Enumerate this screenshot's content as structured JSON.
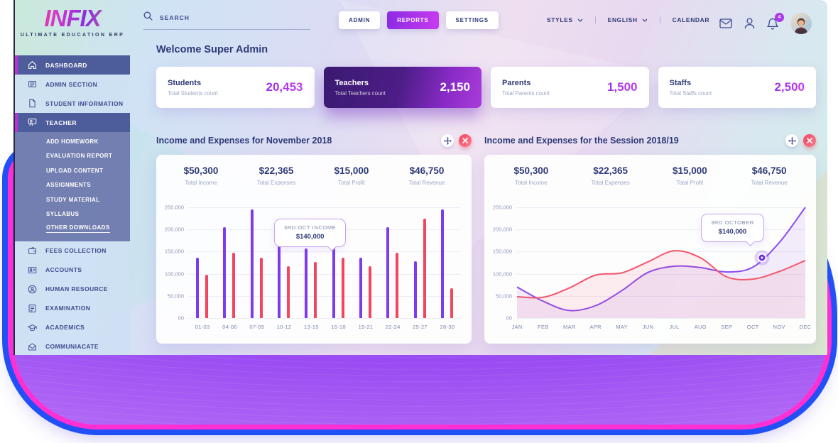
{
  "brand": {
    "name": "INFIX",
    "tagline": "ULTIMATE EDUCATION ERP"
  },
  "header": {
    "search_placeholder": "SEARCH",
    "nav_buttons": [
      {
        "label": "ADMIN",
        "active": false
      },
      {
        "label": "REPORTS",
        "active": true
      },
      {
        "label": "SETTINGS",
        "active": false
      }
    ],
    "links": [
      {
        "label": "STYLES",
        "chevron": true
      },
      {
        "label": "ENGLISH",
        "chevron": true
      },
      {
        "label": "CALENDAR",
        "chevron": false
      }
    ],
    "notification_count": "4"
  },
  "sidebar": {
    "items": [
      {
        "label": "DASHBOARD",
        "icon": "home-icon",
        "active": true
      },
      {
        "label": "ADMIN SECTION",
        "icon": "newspaper-icon"
      },
      {
        "label": "STUDENT INFORMATION",
        "icon": "document-icon"
      },
      {
        "label": "TEACHER",
        "icon": "teacher-icon",
        "active": true,
        "children": [
          "ADD HOMEWORK",
          "EVALUATION REPORT",
          "UPLOAD CONTENT",
          "ASSIGNMENTS",
          "STUDY MATERIAL",
          "SYLLABUS",
          "OTHER DOWNLOADS"
        ]
      },
      {
        "label": "FEES COLLECTION",
        "icon": "wallet-icon"
      },
      {
        "label": "ACCOUNTS",
        "icon": "id-card-icon"
      },
      {
        "label": "HUMAN RESOURCE",
        "icon": "user-circle-icon"
      },
      {
        "label": "EXAMINATION",
        "icon": "exam-icon"
      },
      {
        "label": "ACADEMICS",
        "icon": "graduation-cap-icon"
      },
      {
        "label": "COMMUNIACATE",
        "icon": "envelope-open-icon"
      }
    ]
  },
  "main": {
    "welcome": "Welcome Super Admin",
    "stat_cards": [
      {
        "title": "Students",
        "subtitle": "Total Students count",
        "value": "20,453",
        "highlight": false
      },
      {
        "title": "Teachers",
        "subtitle": "Total Teachers count",
        "value": "2,150",
        "highlight": true
      },
      {
        "title": "Parents",
        "subtitle": "Total Parents count",
        "value": "1,500",
        "highlight": false
      },
      {
        "title": "Staffs",
        "subtitle": "Total Staffs count",
        "value": "2,500",
        "highlight": false
      }
    ]
  },
  "chart_data": [
    {
      "type": "bar",
      "title": "Income and Expenses for November 2018",
      "stats": [
        {
          "value": "$50,300",
          "label": "Total Income"
        },
        {
          "value": "$22,365",
          "label": "Total Expenses"
        },
        {
          "value": "$15,000",
          "label": "Total Profit"
        },
        {
          "value": "$46,750",
          "label": "Total Revenue"
        }
      ],
      "categories": [
        "01-03",
        "04-06",
        "07-09",
        "10-12",
        "13-15",
        "16-18",
        "19-21",
        "22-24",
        "25-27",
        "28-30"
      ],
      "series": [
        {
          "name": "Income",
          "color": "#7c3bf0",
          "values": [
            137000,
            205000,
            245000,
            170000,
            157000,
            176000,
            137000,
            205000,
            128000,
            245000
          ]
        },
        {
          "name": "Expenses",
          "color": "#f4455e",
          "values": [
            97000,
            147000,
            137000,
            117000,
            127000,
            137000,
            117000,
            147000,
            225000,
            68000
          ]
        }
      ],
      "ylim": [
        0,
        250000
      ],
      "yticks": [
        "250,000",
        "200,000",
        "150,000",
        "100,000",
        "50,000",
        "00"
      ],
      "grid": true,
      "legend": "none",
      "tooltip": {
        "title": "3RD OCT INCOME",
        "value": "$140,000",
        "left": 120,
        "top": 16
      }
    },
    {
      "type": "line",
      "title": "Income and Expenses for the Session 2018/19",
      "stats": [
        {
          "value": "$50,300",
          "label": "Total Income"
        },
        {
          "value": "$22,365",
          "label": "Total Expenses"
        },
        {
          "value": "$15,000",
          "label": "Total Profit"
        },
        {
          "value": "$46,750",
          "label": "Total Revenue"
        }
      ],
      "categories": [
        "JAN",
        "FEB",
        "MAR",
        "APR",
        "MAY",
        "JUN",
        "JUL",
        "AUG",
        "SEP",
        "OCT",
        "NOV",
        "DEC"
      ],
      "series": [
        {
          "name": "Income",
          "color": "#8a4bf0",
          "fill": "rgba(138,75,240,0.10)",
          "values": [
            70000,
            38000,
            17000,
            28000,
            62000,
            103000,
            117000,
            114000,
            104000,
            115000,
            170000,
            250000
          ]
        },
        {
          "name": "Expenses",
          "color": "#f4566b",
          "fill": "rgba(244,86,107,0.10)",
          "values": [
            48000,
            47000,
            68000,
            97000,
            102000,
            127000,
            152000,
            136000,
            93000,
            88000,
            105000,
            130000
          ]
        }
      ],
      "ylim": [
        0,
        250000
      ],
      "yticks": [
        "250,000",
        "200,000",
        "150,000",
        "100,000",
        "50,000",
        "00"
      ],
      "grid": true,
      "legend": "none",
      "tooltip": {
        "title": "3RD OCTOBER",
        "value": "$140,000",
        "marker_x": 9.35,
        "marker_y": 137000
      }
    }
  ]
}
